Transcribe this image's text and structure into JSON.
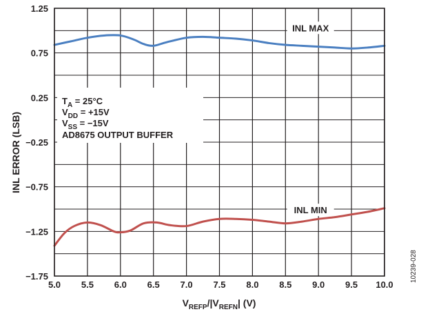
{
  "chart_data": {
    "type": "line",
    "xlabel": {
      "prefix": "V",
      "sub1": "REFP",
      "mid": "/|V",
      "sub2": "REFN",
      "suffix": "| (V)"
    },
    "ylabel": "INL ERROR (LSB)",
    "xlim": [
      5.0,
      10.0
    ],
    "ylim": [
      -1.75,
      1.25
    ],
    "xticks": [
      "5.0",
      "5.5",
      "6.0",
      "6.5",
      "7.0",
      "7.5",
      "8.0",
      "8.5",
      "9.0",
      "9.5",
      "10.0"
    ],
    "yticks": [
      "1.25",
      "0.75",
      "0.25",
      "−0.25",
      "−0.75",
      "−1.25",
      "−1.75"
    ],
    "ytick_values": [
      1.25,
      0.75,
      0.25,
      -0.25,
      -0.75,
      -1.25,
      -1.75
    ],
    "grid": true,
    "series": [
      {
        "name": "INL MAX",
        "color": "#4a7fc1",
        "x": [
          5.0,
          5.25,
          5.5,
          5.75,
          6.0,
          6.2,
          6.35,
          6.5,
          6.7,
          7.0,
          7.25,
          7.5,
          7.75,
          8.0,
          8.25,
          8.5,
          8.75,
          9.0,
          9.25,
          9.5,
          9.75,
          10.0
        ],
        "y": [
          0.84,
          0.88,
          0.92,
          0.945,
          0.945,
          0.9,
          0.85,
          0.83,
          0.87,
          0.92,
          0.93,
          0.92,
          0.91,
          0.89,
          0.86,
          0.84,
          0.83,
          0.82,
          0.81,
          0.8,
          0.81,
          0.83
        ]
      },
      {
        "name": "INL MIN",
        "color": "#c0504d",
        "x": [
          5.0,
          5.15,
          5.3,
          5.5,
          5.7,
          5.9,
          6.0,
          6.15,
          6.35,
          6.55,
          6.75,
          7.0,
          7.25,
          7.5,
          7.75,
          8.0,
          8.25,
          8.5,
          8.75,
          9.0,
          9.25,
          9.5,
          9.75,
          10.0
        ],
        "y": [
          -1.41,
          -1.27,
          -1.19,
          -1.15,
          -1.18,
          -1.25,
          -1.26,
          -1.24,
          -1.16,
          -1.15,
          -1.18,
          -1.19,
          -1.14,
          -1.11,
          -1.11,
          -1.12,
          -1.14,
          -1.16,
          -1.14,
          -1.11,
          -1.09,
          -1.06,
          -1.03,
          -0.99
        ]
      }
    ],
    "series_labels": [
      {
        "text": "INL MAX",
        "x": 8.88,
        "y": 1.0
      },
      {
        "text": "INL MIN",
        "x": 8.88,
        "y": -1.04
      }
    ]
  },
  "annotation": {
    "line1": {
      "main": "T",
      "sub": "A",
      "rest": " = 25°C"
    },
    "line2": {
      "main": "V",
      "sub": "DD",
      "rest": " = +15V"
    },
    "line3": {
      "main": "V",
      "sub": "SS",
      "rest": " = −15V"
    },
    "line4": "AD8675 OUTPUT BUFFER"
  },
  "figure_code": "10239-028"
}
